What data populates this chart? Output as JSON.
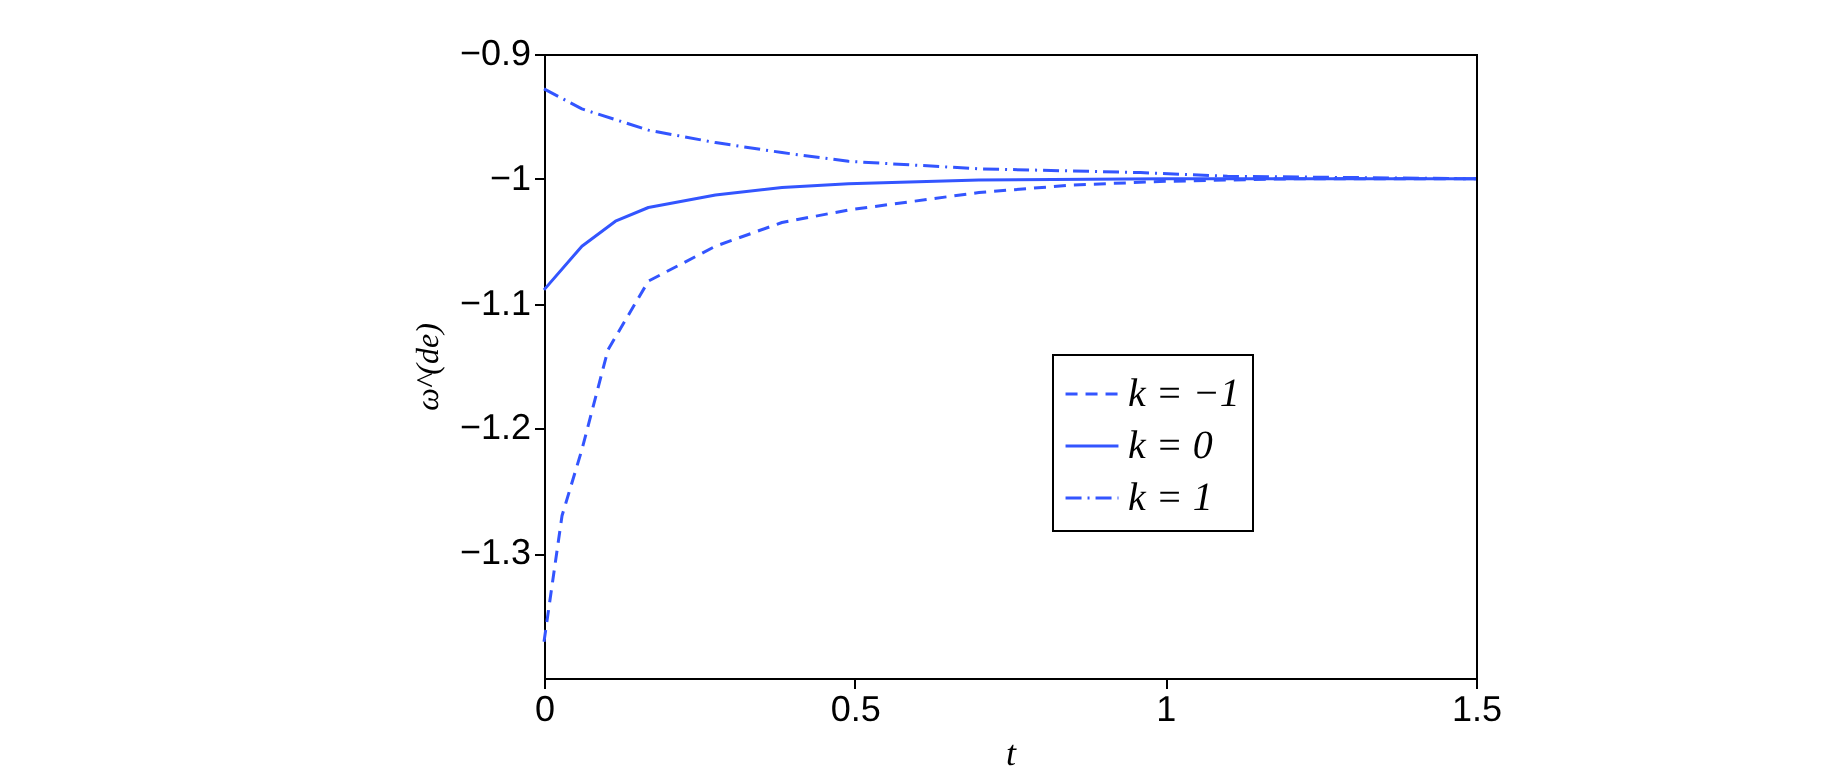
{
  "chart_data": {
    "type": "line",
    "xlabel": "t",
    "ylabel": "ω^(de)",
    "xlim": [
      0,
      1.5
    ],
    "ylim": [
      -1.4,
      -0.9
    ],
    "xticks": [
      0,
      0.5,
      1,
      1.5
    ],
    "yticks": [
      -1.3,
      -1.2,
      -1.1,
      -1,
      -0.9
    ],
    "grid": false,
    "legend": "right",
    "marker": "none",
    "series": [
      {
        "name": "k = −1",
        "color": "#3355ff",
        "line_style": "dashed",
        "x": [
          0,
          0.029,
          0.061,
          0.103,
          0.168,
          0.276,
          0.383,
          0.49,
          0.7,
          0.85,
          1.0,
          1.2,
          1.5
        ],
        "values": [
          -1.371,
          -1.27,
          -1.217,
          -1.137,
          -1.082,
          -1.054,
          -1.035,
          -1.025,
          -1.011,
          -1.005,
          -1.002,
          -1.0,
          -1.0
        ]
      },
      {
        "name": "k = 0",
        "color": "#3355ff",
        "line_style": "solid",
        "x": [
          0,
          0.061,
          0.115,
          0.168,
          0.276,
          0.383,
          0.49,
          0.7,
          1.0,
          1.5
        ],
        "values": [
          -1.089,
          -1.054,
          -1.034,
          -1.023,
          -1.013,
          -1.007,
          -1.004,
          -1.001,
          -1.0,
          -1.0
        ]
      },
      {
        "name": "k = 1",
        "color": "#3355ff",
        "line_style": "dashdot",
        "x": [
          0,
          0.061,
          0.168,
          0.276,
          0.383,
          0.49,
          0.7,
          0.96,
          1.1,
          1.5
        ],
        "values": [
          -0.928,
          -0.944,
          -0.961,
          -0.971,
          -0.979,
          -0.986,
          -0.992,
          -0.995,
          -0.998,
          -1.0
        ]
      }
    ]
  }
}
